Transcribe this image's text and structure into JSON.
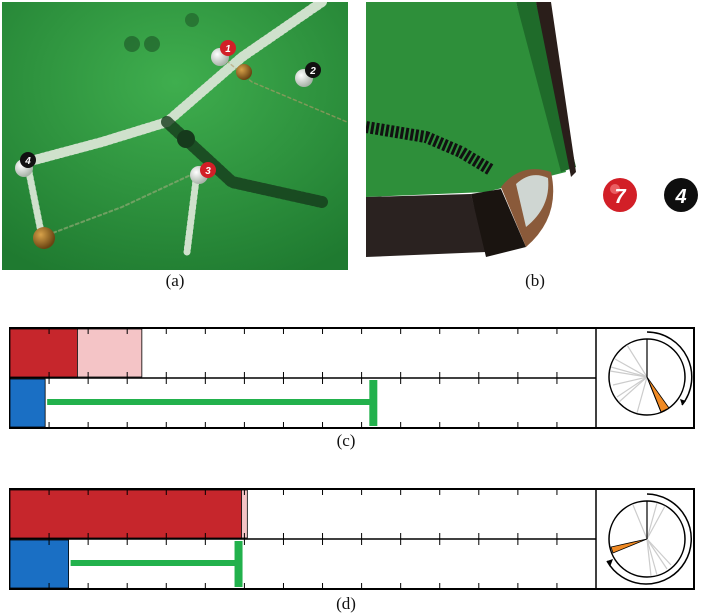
{
  "captions": {
    "a": "(a)",
    "b": "(b)",
    "c": "(c)",
    "d": "(d)"
  },
  "panel_a": {
    "balls": [
      "1",
      "2",
      "3",
      "4"
    ]
  },
  "panel_b": {
    "ball_labels": [
      "7",
      "4"
    ]
  },
  "colors": {
    "table_green": "#2f8f3a",
    "red_bar": "#c6262c",
    "pink_bar": "#f4c4c6",
    "blue_bar": "#1a6fc4",
    "green_marker": "#22b14c",
    "orange_wedge": "#f08a24"
  },
  "bar_c": {
    "red_fraction": 0.115,
    "pink_fraction": 0.225,
    "blue_fraction": 0.06,
    "green_fraction": 0.62
  },
  "bar_d": {
    "red_fraction": 0.395,
    "pink_fraction": 0.405,
    "blue_fraction": 0.1,
    "green_fraction": 0.39
  }
}
